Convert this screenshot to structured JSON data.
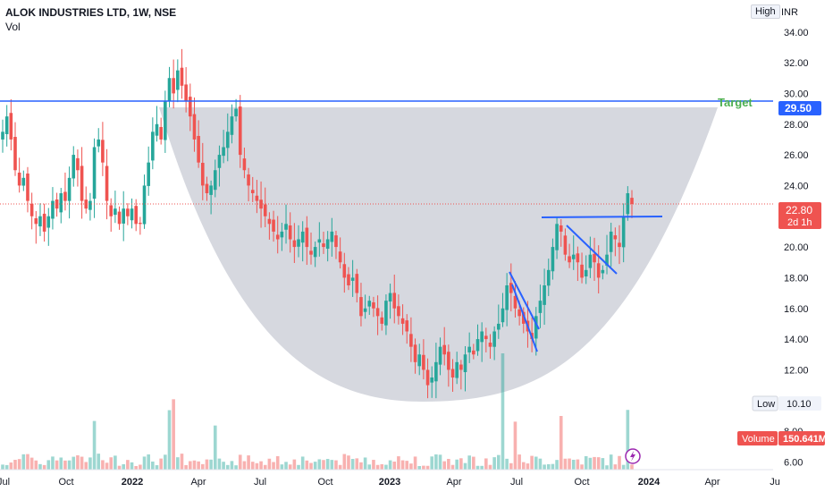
{
  "header": {
    "title": "ALOK INDUSTRIES LTD, 1W, NSE",
    "indicator": "Vol"
  },
  "toolbar": {
    "high_label": "High",
    "currency": "INR"
  },
  "badges": {
    "target_label": "Target",
    "target_price": "29.50",
    "last_price": "22.80",
    "countdown": "2d 1h",
    "low_label": "Low",
    "low_value": "10.10",
    "volume_label": "Volume",
    "volume_value": "150.641M"
  },
  "colors": {
    "up": "#26a69a",
    "down": "#ef5350",
    "line": "#2962ff",
    "target": "#4caf50",
    "cup": "#d1d4dc"
  },
  "chart_data": {
    "type": "candlestick",
    "x_ticks": [
      "Jul",
      "Oct",
      "2022",
      "Apr",
      "Jul",
      "Oct",
      "2023",
      "Apr",
      "Jul",
      "Oct",
      "2024",
      "Apr",
      "Ju"
    ],
    "y_ticks": [
      "34.00",
      "32.00",
      "30.00",
      "28.00",
      "26.00",
      "24.00",
      "22.00",
      "20.00",
      "18.00",
      "16.00",
      "14.00",
      "12.00",
      "10.00",
      "8.00",
      "6.00"
    ],
    "ylim": [
      5.5,
      35.5
    ],
    "closes": [
      27.5,
      28.5,
      27.0,
      25.0,
      24.0,
      24.5,
      23.0,
      22.0,
      21.5,
      22.0,
      21.0,
      22.0,
      23.0,
      22.5,
      23.5,
      23.0,
      24.5,
      26.0,
      25.0,
      23.0,
      22.5,
      23.0,
      26.5,
      27.0,
      25.5,
      23.0,
      22.0,
      22.5,
      21.5,
      22.5,
      22.0,
      22.5,
      21.5,
      21.5,
      24.0,
      25.5,
      27.5,
      28.0,
      27.0,
      29.5,
      31.0,
      30.0,
      31.5,
      30.5,
      29.5,
      28.5,
      27.0,
      25.5,
      24.0,
      23.5,
      24.0,
      25.0,
      26.0,
      26.5,
      27.5,
      28.5,
      29.0,
      26.0,
      25.0,
      24.0,
      23.5,
      23.0,
      22.5,
      22.0,
      21.5,
      21.0,
      20.5,
      21.0,
      21.5,
      20.5,
      20.0,
      20.5,
      21.0,
      20.0,
      19.5,
      20.0,
      20.5,
      20.0,
      20.5,
      21.0,
      20.0,
      19.0,
      18.0,
      17.5,
      18.0,
      17.0,
      15.5,
      16.0,
      16.5,
      16.0,
      15.5,
      15.0,
      16.5,
      17.0,
      16.0,
      15.5,
      15.0,
      14.5,
      13.5,
      12.5,
      13.0,
      12.0,
      11.0,
      11.5,
      12.5,
      13.5,
      13.0,
      12.0,
      11.5,
      12.5,
      12.0,
      13.0,
      13.5,
      13.0,
      14.0,
      14.5,
      14.0,
      13.5,
      14.5,
      15.0,
      16.0,
      17.5,
      17.0,
      16.0,
      15.5,
      15.0,
      14.5,
      14.0,
      15.5,
      16.5,
      17.5,
      18.5,
      20.0,
      21.5,
      21.0,
      19.5,
      19.0,
      19.5,
      19.0,
      18.0,
      18.5,
      19.5,
      19.0,
      18.0,
      18.5,
      19.5,
      21.0,
      20.5,
      20.0,
      22.0,
      23.5,
      22.8
    ]
  }
}
